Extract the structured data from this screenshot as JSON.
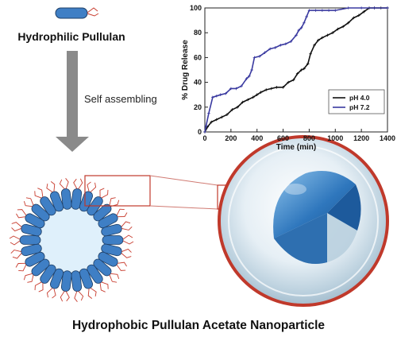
{
  "diagram": {
    "top_label": "Hydrophilic Pullulan",
    "arrow_label": "Self assembling",
    "bottom_label": "Hydrophobic Pullulan Acetate Nanoparticle"
  },
  "chart_data": {
    "type": "line",
    "title": "",
    "xlabel": "Time (min)",
    "ylabel": "% Drug Release",
    "xlim": [
      0,
      1400
    ],
    "ylim": [
      0,
      100
    ],
    "xticks": [
      0,
      200,
      400,
      600,
      800,
      1000,
      1200,
      1400
    ],
    "yticks": [
      0,
      20,
      40,
      60,
      80,
      100
    ],
    "legend_position": "inside-right",
    "series": [
      {
        "name": "pH 4.0",
        "color": "#111111",
        "x": [
          0,
          20,
          50,
          90,
          130,
          170,
          210,
          250,
          290,
          330,
          370,
          400,
          430,
          470,
          510,
          550,
          600,
          640,
          680,
          710,
          740,
          760,
          790,
          810,
          840,
          870,
          900,
          940,
          980,
          1020,
          1060,
          1100,
          1140,
          1180,
          1220,
          1260,
          1300,
          1350,
          1400
        ],
        "y": [
          0,
          4,
          8,
          10,
          12,
          14,
          18,
          20,
          24,
          26,
          28,
          30,
          32,
          34,
          35,
          36,
          36,
          40,
          42,
          47,
          50,
          51,
          55,
          63,
          70,
          74,
          76,
          78,
          80,
          83,
          85,
          88,
          92,
          94,
          97,
          100,
          100,
          100,
          100
        ]
      },
      {
        "name": "pH 7.2",
        "color": "#3a3aa0",
        "x": [
          0,
          10,
          30,
          60,
          90,
          120,
          160,
          200,
          240,
          280,
          320,
          340,
          360,
          380,
          420,
          460,
          500,
          540,
          580,
          620,
          660,
          700,
          720,
          740,
          760,
          780,
          800,
          850,
          900,
          950,
          1000,
          1100,
          1200,
          1300,
          1400
        ],
        "y": [
          0,
          5,
          15,
          28,
          29,
          30,
          31,
          35,
          35,
          37,
          43,
          45,
          50,
          60,
          61,
          64,
          67,
          68,
          70,
          71,
          73,
          78,
          82,
          84,
          88,
          93,
          98,
          98,
          98,
          98,
          98,
          100,
          100,
          100,
          100
        ]
      }
    ]
  }
}
